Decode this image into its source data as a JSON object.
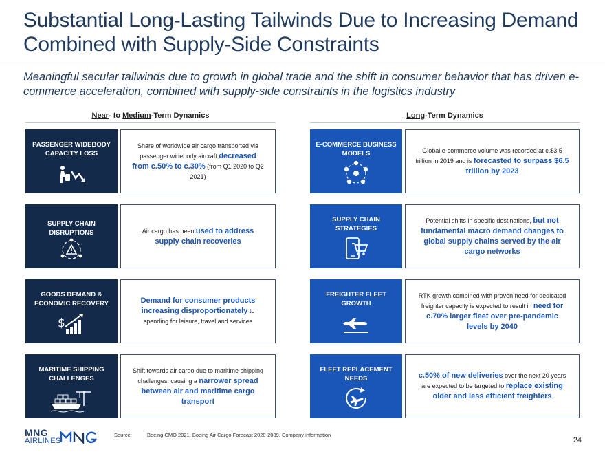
{
  "title": "Substantial Long-Lasting Tailwinds Due to Increasing Demand Combined with Supply-Side Constraints",
  "subtitle": "Meaningful secular tailwinds due to growth in global trade and the shift in consumer behavior that has driven e-commerce acceleration, combined with supply-side constraints in the logistics industry",
  "left_header": {
    "near": "Near",
    "mid1": "- to ",
    "medium": "Medium",
    "rest": "-Term Dynamics"
  },
  "right_header": {
    "long": "Long",
    "rest": "-Term Dynamics"
  },
  "left_rows": [
    {
      "label": "PASSENGER WIDEBODY CAPACITY LOSS",
      "icon": "luggage-decline-icon",
      "t1": "Share of worldwide air cargo transported via passenger widebody aircraft ",
      "h1": "decreased",
      "h2": "from c.50% to c.30%",
      "t2": " (from Q1 2020 to Q2 2021)"
    },
    {
      "label": "SUPPLY CHAIN DISRUPTIONS",
      "icon": "supply-chain-warning-icon",
      "t1": "Air cargo has been ",
      "h1": "used to address supply chain recoveries"
    },
    {
      "label": "GOODS DEMAND & ECONOMIC RECOVERY",
      "icon": "dollar-growth-icon",
      "h1": "Demand for consumer products increasing disproportionately",
      "t1": " to spending for leisure, travel and services"
    },
    {
      "label": "MARITIME SHIPPING CHALLENGES",
      "icon": "container-ship-icon",
      "t1": "Shift towards air cargo due to maritime shipping challenges, causing a ",
      "h1": "narrower spread between air and maritime cargo transport"
    }
  ],
  "right_rows": [
    {
      "label": "E-COMMERCE BUSINESS MODELS",
      "icon": "ecommerce-network-icon",
      "t1": "Global e-commerce volume was recorded at c.$3.5 trillion in 2019 and is ",
      "h1": "forecasted to surpass $6.5 trillion by 2023"
    },
    {
      "label": "SUPPLY CHAIN STRATEGIES",
      "icon": "mobile-cart-icon",
      "t1": "Potential shifts in specific destinations, ",
      "h1": "but not fundamental macro demand changes to global supply chains served by the air cargo networks"
    },
    {
      "label": "FREIGHTER FLEET GROWTH",
      "icon": "airplane-icon",
      "t1": "RTK growth combined with proven need for dedicated freighter capacity is expected to result in ",
      "h1": "need for c.70% larger fleet over pre-pandemic levels by 2040"
    },
    {
      "label": "FLEET REPLACEMENT NEEDS",
      "icon": "airplane-cycle-icon",
      "h1": "c.50% of new deliveries",
      "t1": " over the next 20 years are expected to be targeted to ",
      "h2": "replace existing older and less efficient freighters"
    }
  ],
  "footer": {
    "logo_top": "MNG",
    "logo_bottom": "AIRLINES",
    "source_label": "Source:",
    "source_text": "Boeing CMO 2021, Boeing Air Cargo Forecast 2020-2039, Company information",
    "page": "24"
  },
  "colors": {
    "navy": "#132a4a",
    "blue": "#1a56b8",
    "title": "#1f3a5f"
  }
}
